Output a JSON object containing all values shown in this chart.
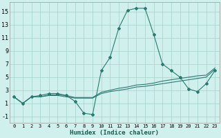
{
  "xlabel": "Humidex (Indice chaleur)",
  "bg_color": "#cff0ec",
  "grid_color": "#aad8d0",
  "line_color": "#2a7a70",
  "xlim": [
    -0.5,
    23.5
  ],
  "ylim": [
    -2.0,
    16.5
  ],
  "yticks": [
    -1,
    1,
    3,
    5,
    7,
    9,
    11,
    13,
    15
  ],
  "xticks": [
    0,
    1,
    2,
    3,
    4,
    5,
    6,
    7,
    8,
    9,
    10,
    11,
    12,
    13,
    14,
    15,
    16,
    17,
    18,
    19,
    20,
    21,
    22,
    23
  ],
  "series": [
    {
      "x": [
        0,
        1,
        2,
        3,
        4,
        5,
        6,
        7,
        8,
        9,
        10,
        11,
        12,
        13,
        14,
        15,
        16,
        17,
        18,
        19,
        20,
        21,
        22,
        23
      ],
      "y": [
        2.0,
        1.0,
        2.0,
        2.0,
        2.2,
        2.2,
        2.0,
        1.8,
        1.8,
        1.8,
        2.5,
        2.8,
        3.0,
        3.2,
        3.5,
        3.6,
        3.8,
        4.0,
        4.2,
        4.4,
        4.6,
        4.8,
        5.0,
        6.2
      ]
    },
    {
      "x": [
        0,
        1,
        2,
        3,
        4,
        5,
        6,
        7,
        8,
        9,
        10,
        11,
        12,
        13,
        14,
        15,
        16,
        17,
        18,
        19,
        20,
        21,
        22,
        23
      ],
      "y": [
        2.0,
        1.0,
        2.0,
        2.0,
        2.3,
        2.3,
        2.2,
        1.9,
        1.9,
        1.9,
        2.7,
        3.0,
        3.3,
        3.5,
        3.8,
        3.9,
        4.1,
        4.4,
        4.6,
        4.8,
        5.0,
        5.2,
        5.3,
        6.4
      ]
    },
    {
      "x": [
        0,
        1,
        2,
        3,
        4,
        5,
        6,
        7,
        8,
        9,
        10,
        11,
        12,
        13,
        14,
        15,
        16,
        17,
        18,
        19,
        20,
        21,
        22,
        23
      ],
      "y": [
        2.0,
        1.0,
        2.0,
        2.2,
        2.5,
        2.5,
        2.2,
        1.3,
        -0.5,
        -0.7,
        6.0,
        8.0,
        12.5,
        15.2,
        15.5,
        15.5,
        11.5,
        7.0,
        6.0,
        5.0,
        3.2,
        2.8,
        4.0,
        6.0
      ]
    }
  ]
}
